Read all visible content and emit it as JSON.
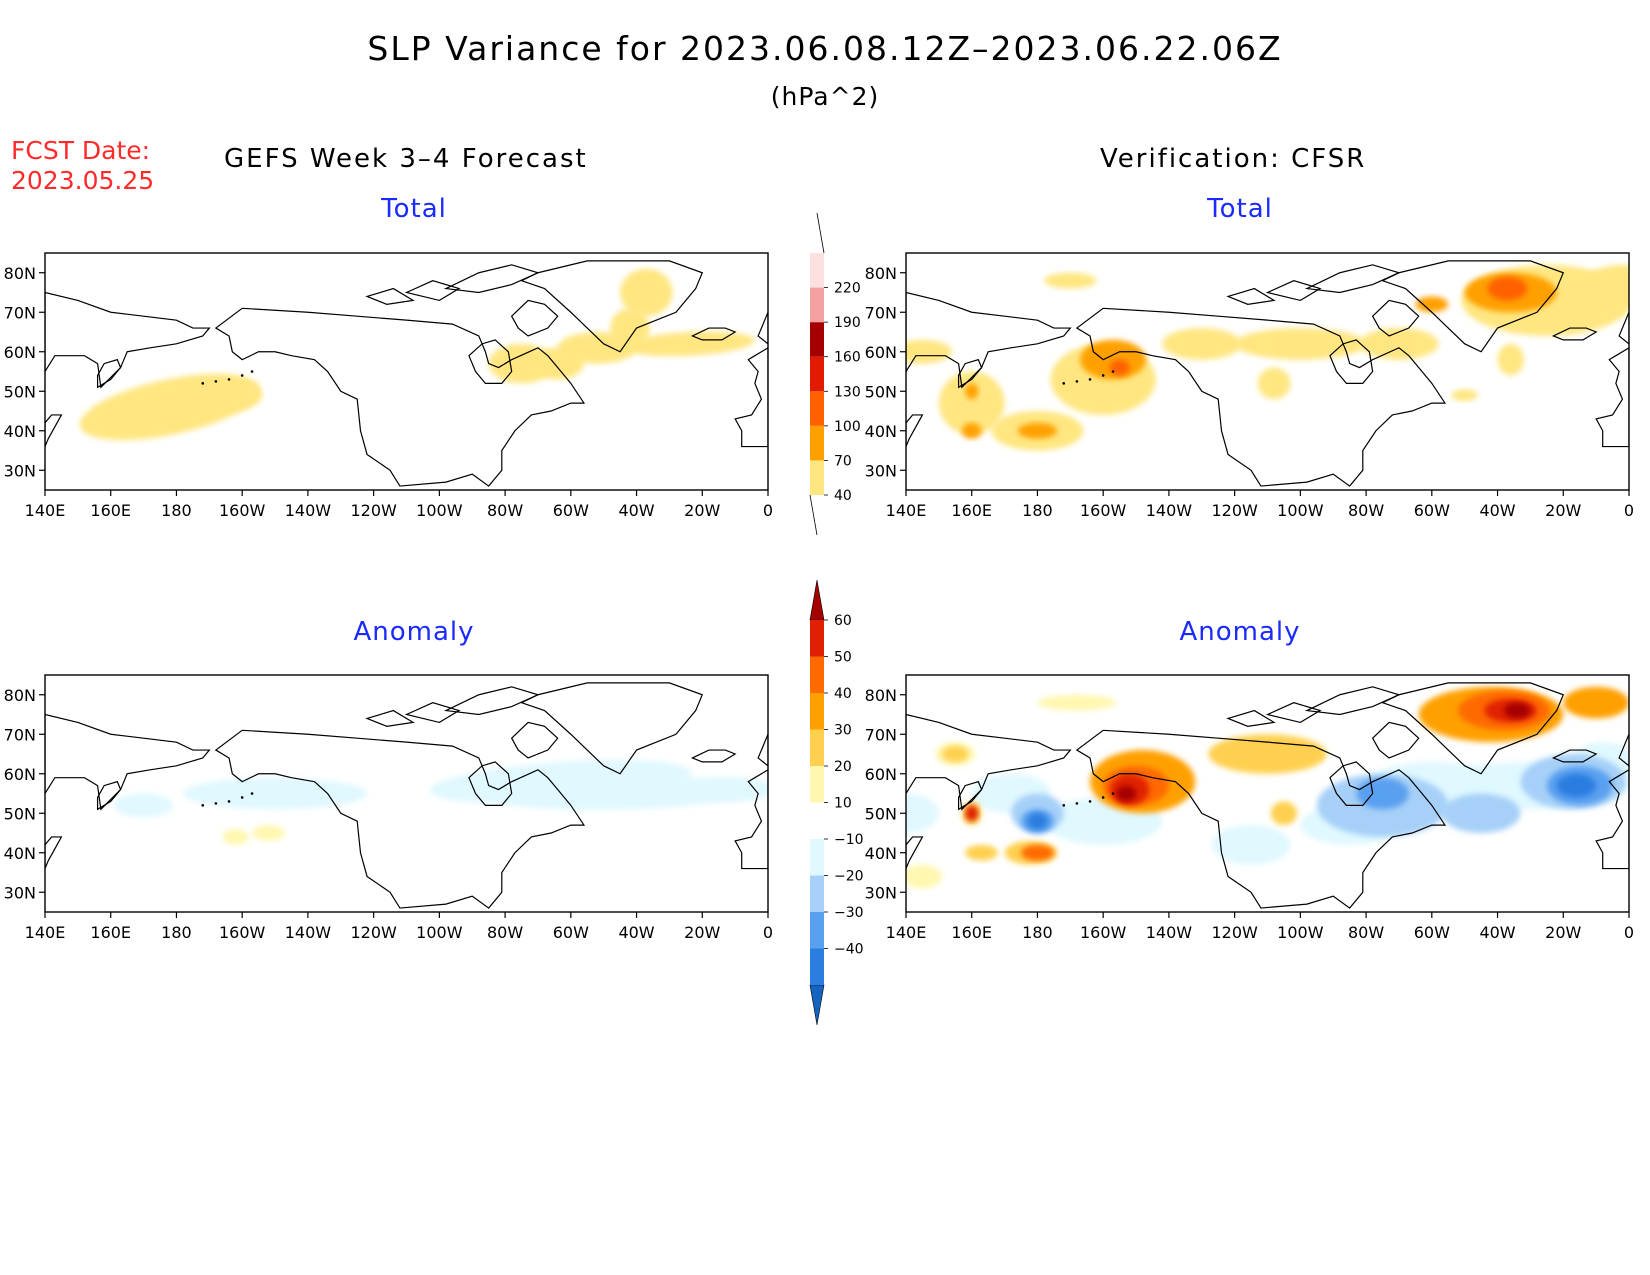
{
  "title": "SLP Variance for 2023.06.08.12Z–2023.06.22.06Z",
  "units": "(hPa^2)",
  "forecast_date": {
    "label": "FCST Date:",
    "value": "2023.05.25"
  },
  "columns": {
    "left": "GEFS Week 3–4 Forecast",
    "right": "Verification: CFSR"
  },
  "panels": {
    "top_left": {
      "title": "Total"
    },
    "top_right": {
      "title": "Total"
    },
    "bottom_left": {
      "title": "Anomaly"
    },
    "bottom_right": {
      "title": "Anomaly"
    }
  },
  "axes": {
    "lat_ticks": [
      "30N",
      "40N",
      "50N",
      "60N",
      "70N",
      "80N"
    ],
    "lon_ticks": [
      "140E",
      "160E",
      "180",
      "160W",
      "140W",
      "120W",
      "100W",
      "80W",
      "60W",
      "40W",
      "20W",
      "0"
    ],
    "lat_range": [
      25,
      85
    ],
    "lon_range_east": [
      140,
      360
    ]
  },
  "colorbars": {
    "total": {
      "labels": [
        "40",
        "70",
        "100",
        "130",
        "160",
        "190",
        "220"
      ],
      "colors": [
        "#ffe680",
        "#ffa000",
        "#ff6000",
        "#e11a00",
        "#a50000",
        "#f2a0a0",
        "#fde0e0"
      ]
    },
    "anomaly": {
      "labels": [
        "−40",
        "−30",
        "−20",
        "−10",
        "10",
        "20",
        "30",
        "40",
        "50",
        "60"
      ],
      "colors": [
        "#1565c0",
        "#2b7de0",
        "#5aa0f0",
        "#a6d0f8",
        "#e0f8ff",
        "#ffffff",
        "#fff7b0",
        "#ffd050",
        "#ffa000",
        "#ff6a00",
        "#e02000",
        "#a50000"
      ]
    }
  },
  "colors": {
    "title_text": "#000000",
    "forecast_date_text": "#ff2a2a",
    "panel_title_text": "#1b2bff"
  }
}
